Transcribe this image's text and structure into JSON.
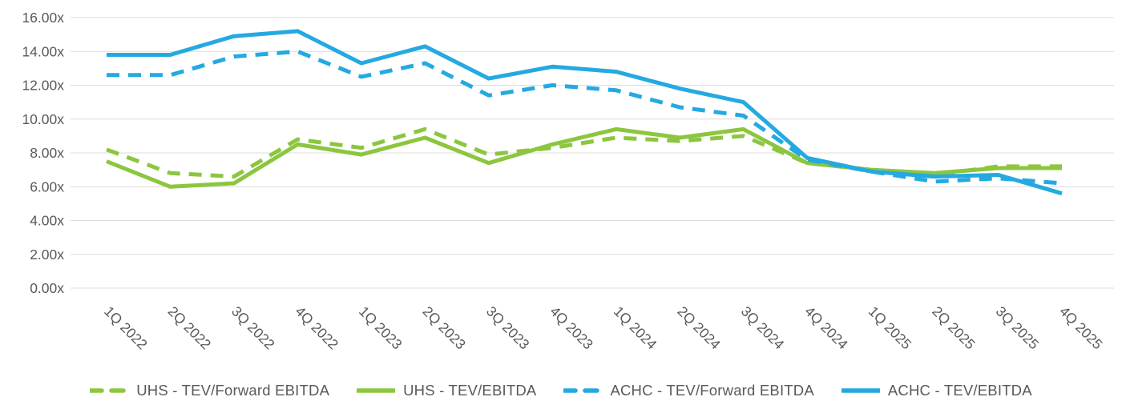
{
  "chart_data": {
    "type": "line",
    "title": "",
    "xlabel": "",
    "ylabel": "",
    "y_min": 0,
    "y_max": 16,
    "y_step": 2,
    "grid": true,
    "legend_position": "bottom",
    "y_ticks": [
      "16.00x",
      "14.00x",
      "12.00x",
      "10.00x",
      "8.00x",
      "6.00x",
      "4.00x",
      "2.00x",
      "0.00x"
    ],
    "categories": [
      "1Q 2022",
      "2Q 2022",
      "3Q 2022",
      "4Q 2022",
      "1Q 2023",
      "2Q 2023",
      "3Q 2023",
      "4Q 2023",
      "1Q 2024",
      "2Q 2024",
      "3Q 2024",
      "4Q 2024",
      "1Q 2025",
      "2Q 2025",
      "3Q 2025",
      "4Q 2025"
    ],
    "series": [
      {
        "name": "UHS - TEV/Forward EBITDA",
        "color": "#8CC63F",
        "dashed": true,
        "values": [
          8.2,
          6.8,
          6.6,
          8.8,
          8.3,
          9.4,
          7.9,
          8.3,
          8.9,
          8.7,
          9.0,
          7.4,
          7.0,
          6.7,
          7.2,
          7.2
        ]
      },
      {
        "name": "UHS - TEV/EBITDA",
        "color": "#8CC63F",
        "dashed": false,
        "values": [
          7.5,
          6.0,
          6.2,
          8.5,
          7.9,
          8.9,
          7.4,
          8.5,
          9.4,
          8.9,
          9.4,
          7.4,
          7.0,
          6.8,
          7.1,
          7.1
        ]
      },
      {
        "name": "ACHC - TEV/Forward EBITDA",
        "color": "#24A9E1",
        "dashed": true,
        "values": [
          12.6,
          12.6,
          13.7,
          14.0,
          12.5,
          13.3,
          11.4,
          12.0,
          11.7,
          10.7,
          10.2,
          7.6,
          6.9,
          6.3,
          6.5,
          6.2
        ]
      },
      {
        "name": "ACHC - TEV/EBITDA",
        "color": "#24A9E1",
        "dashed": false,
        "values": [
          13.8,
          13.8,
          14.9,
          15.2,
          13.3,
          14.3,
          12.4,
          13.1,
          12.8,
          11.8,
          11.0,
          7.7,
          6.9,
          6.6,
          6.7,
          5.6
        ]
      }
    ],
    "colors": {
      "uhs_green": "#8CC63F",
      "achc_blue": "#24A9E1",
      "gridline": "#DCDCDC",
      "axis_text": "#58595B"
    }
  }
}
